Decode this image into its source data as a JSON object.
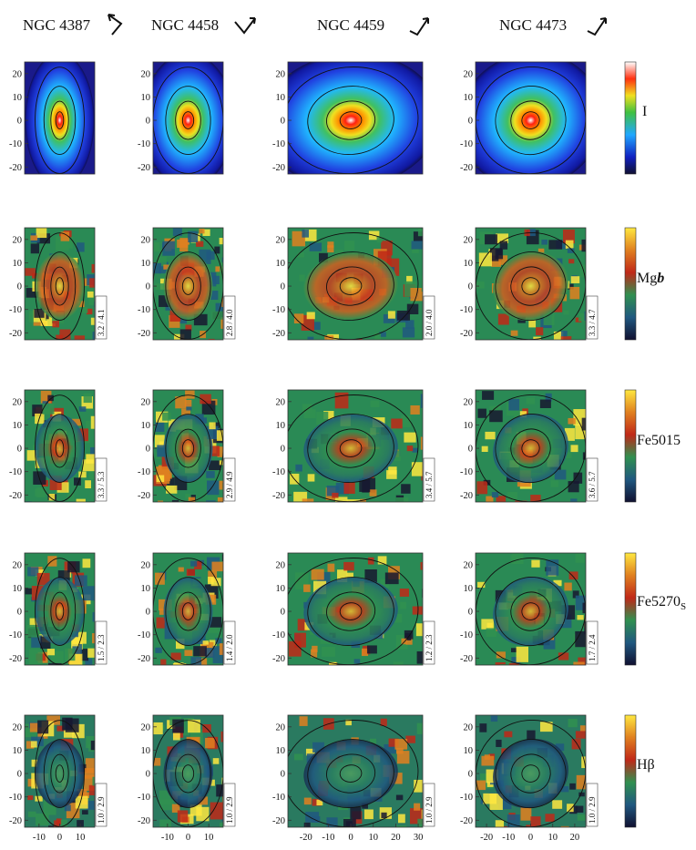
{
  "galaxies": [
    {
      "name": "NGC 4387"
    },
    {
      "name": "NGC 4458"
    },
    {
      "name": "NGC 4459"
    },
    {
      "name": "NGC 4473"
    }
  ],
  "quantities": [
    {
      "label_main": "I",
      "label_sub": "",
      "ranges": [
        "",
        "",
        "",
        ""
      ]
    },
    {
      "label_main": "Mg",
      "label_sub": "b",
      "ranges": [
        "3.2 / 4.1",
        "2.8 / 4.0",
        "2.0 / 4.0",
        "3.3 / 4.7"
      ]
    },
    {
      "label_main": "Fe5015",
      "label_sub": "",
      "ranges": [
        "3.3 / 5.3",
        "2.9 / 4.9",
        "3.4 / 5.7",
        "3.6 / 5.7"
      ]
    },
    {
      "label_main": "Fe5270",
      "label_sub": "S",
      "ranges": [
        "1.5 / 2.3",
        "1.4 / 2.0",
        "1.2 / 2.3",
        "1.7 / 2.4"
      ]
    },
    {
      "label_main": "Hβ",
      "label_sub": "",
      "ranges": [
        "1.0 / 2.9",
        "1.0 / 2.9",
        "1.0 / 2.9",
        "1.0 / 2.9"
      ]
    }
  ],
  "axes": {
    "y_ticks": [
      "20",
      "10",
      "0",
      "-10",
      "-20"
    ],
    "x_ticks_col1": [
      "-10",
      "0",
      "10"
    ],
    "x_ticks_col2": [
      "-10",
      "0",
      "10"
    ],
    "x_ticks_col3": [
      "-20",
      "-10",
      "0",
      "10",
      "20",
      "30"
    ],
    "x_ticks_col4": [
      "-20",
      "-10",
      "0",
      "10",
      "20"
    ]
  },
  "colors": {
    "colormap": [
      "#ffffff",
      "#ff3010",
      "#ff9000",
      "#f0e020",
      "#40c040",
      "#20a8ff",
      "#1020c0",
      "#101030"
    ],
    "index_colormap": [
      "#ffe840",
      "#e08020",
      "#c02818",
      "#309050",
      "#205880",
      "#181830"
    ]
  }
}
